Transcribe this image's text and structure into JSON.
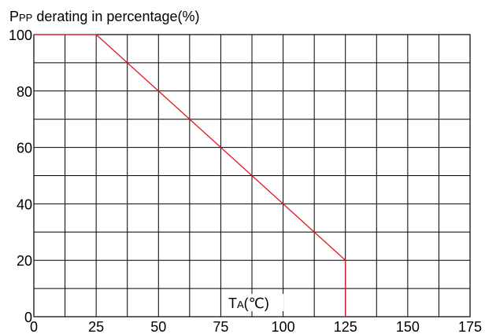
{
  "chart_data": {
    "type": "line",
    "title_main": "P",
    "title_sub": "PP",
    "title_rest": " derating in percentage(%)",
    "xlabel_main": "T",
    "xlabel_sub": "A",
    "xlabel_rest": "(℃)",
    "xlim": [
      0,
      175
    ],
    "ylim": [
      0,
      100
    ],
    "x_grid_step": 12.5,
    "y_grid_step": 10,
    "xticks": [
      0,
      25,
      50,
      75,
      100,
      125,
      150,
      175
    ],
    "yticks": [
      0,
      20,
      40,
      60,
      80,
      100
    ],
    "grid": true,
    "line_color": "#e0141e",
    "series": [
      {
        "x": [
          0,
          25,
          125,
          125
        ],
        "y": [
          100,
          100,
          20,
          0
        ]
      }
    ]
  }
}
